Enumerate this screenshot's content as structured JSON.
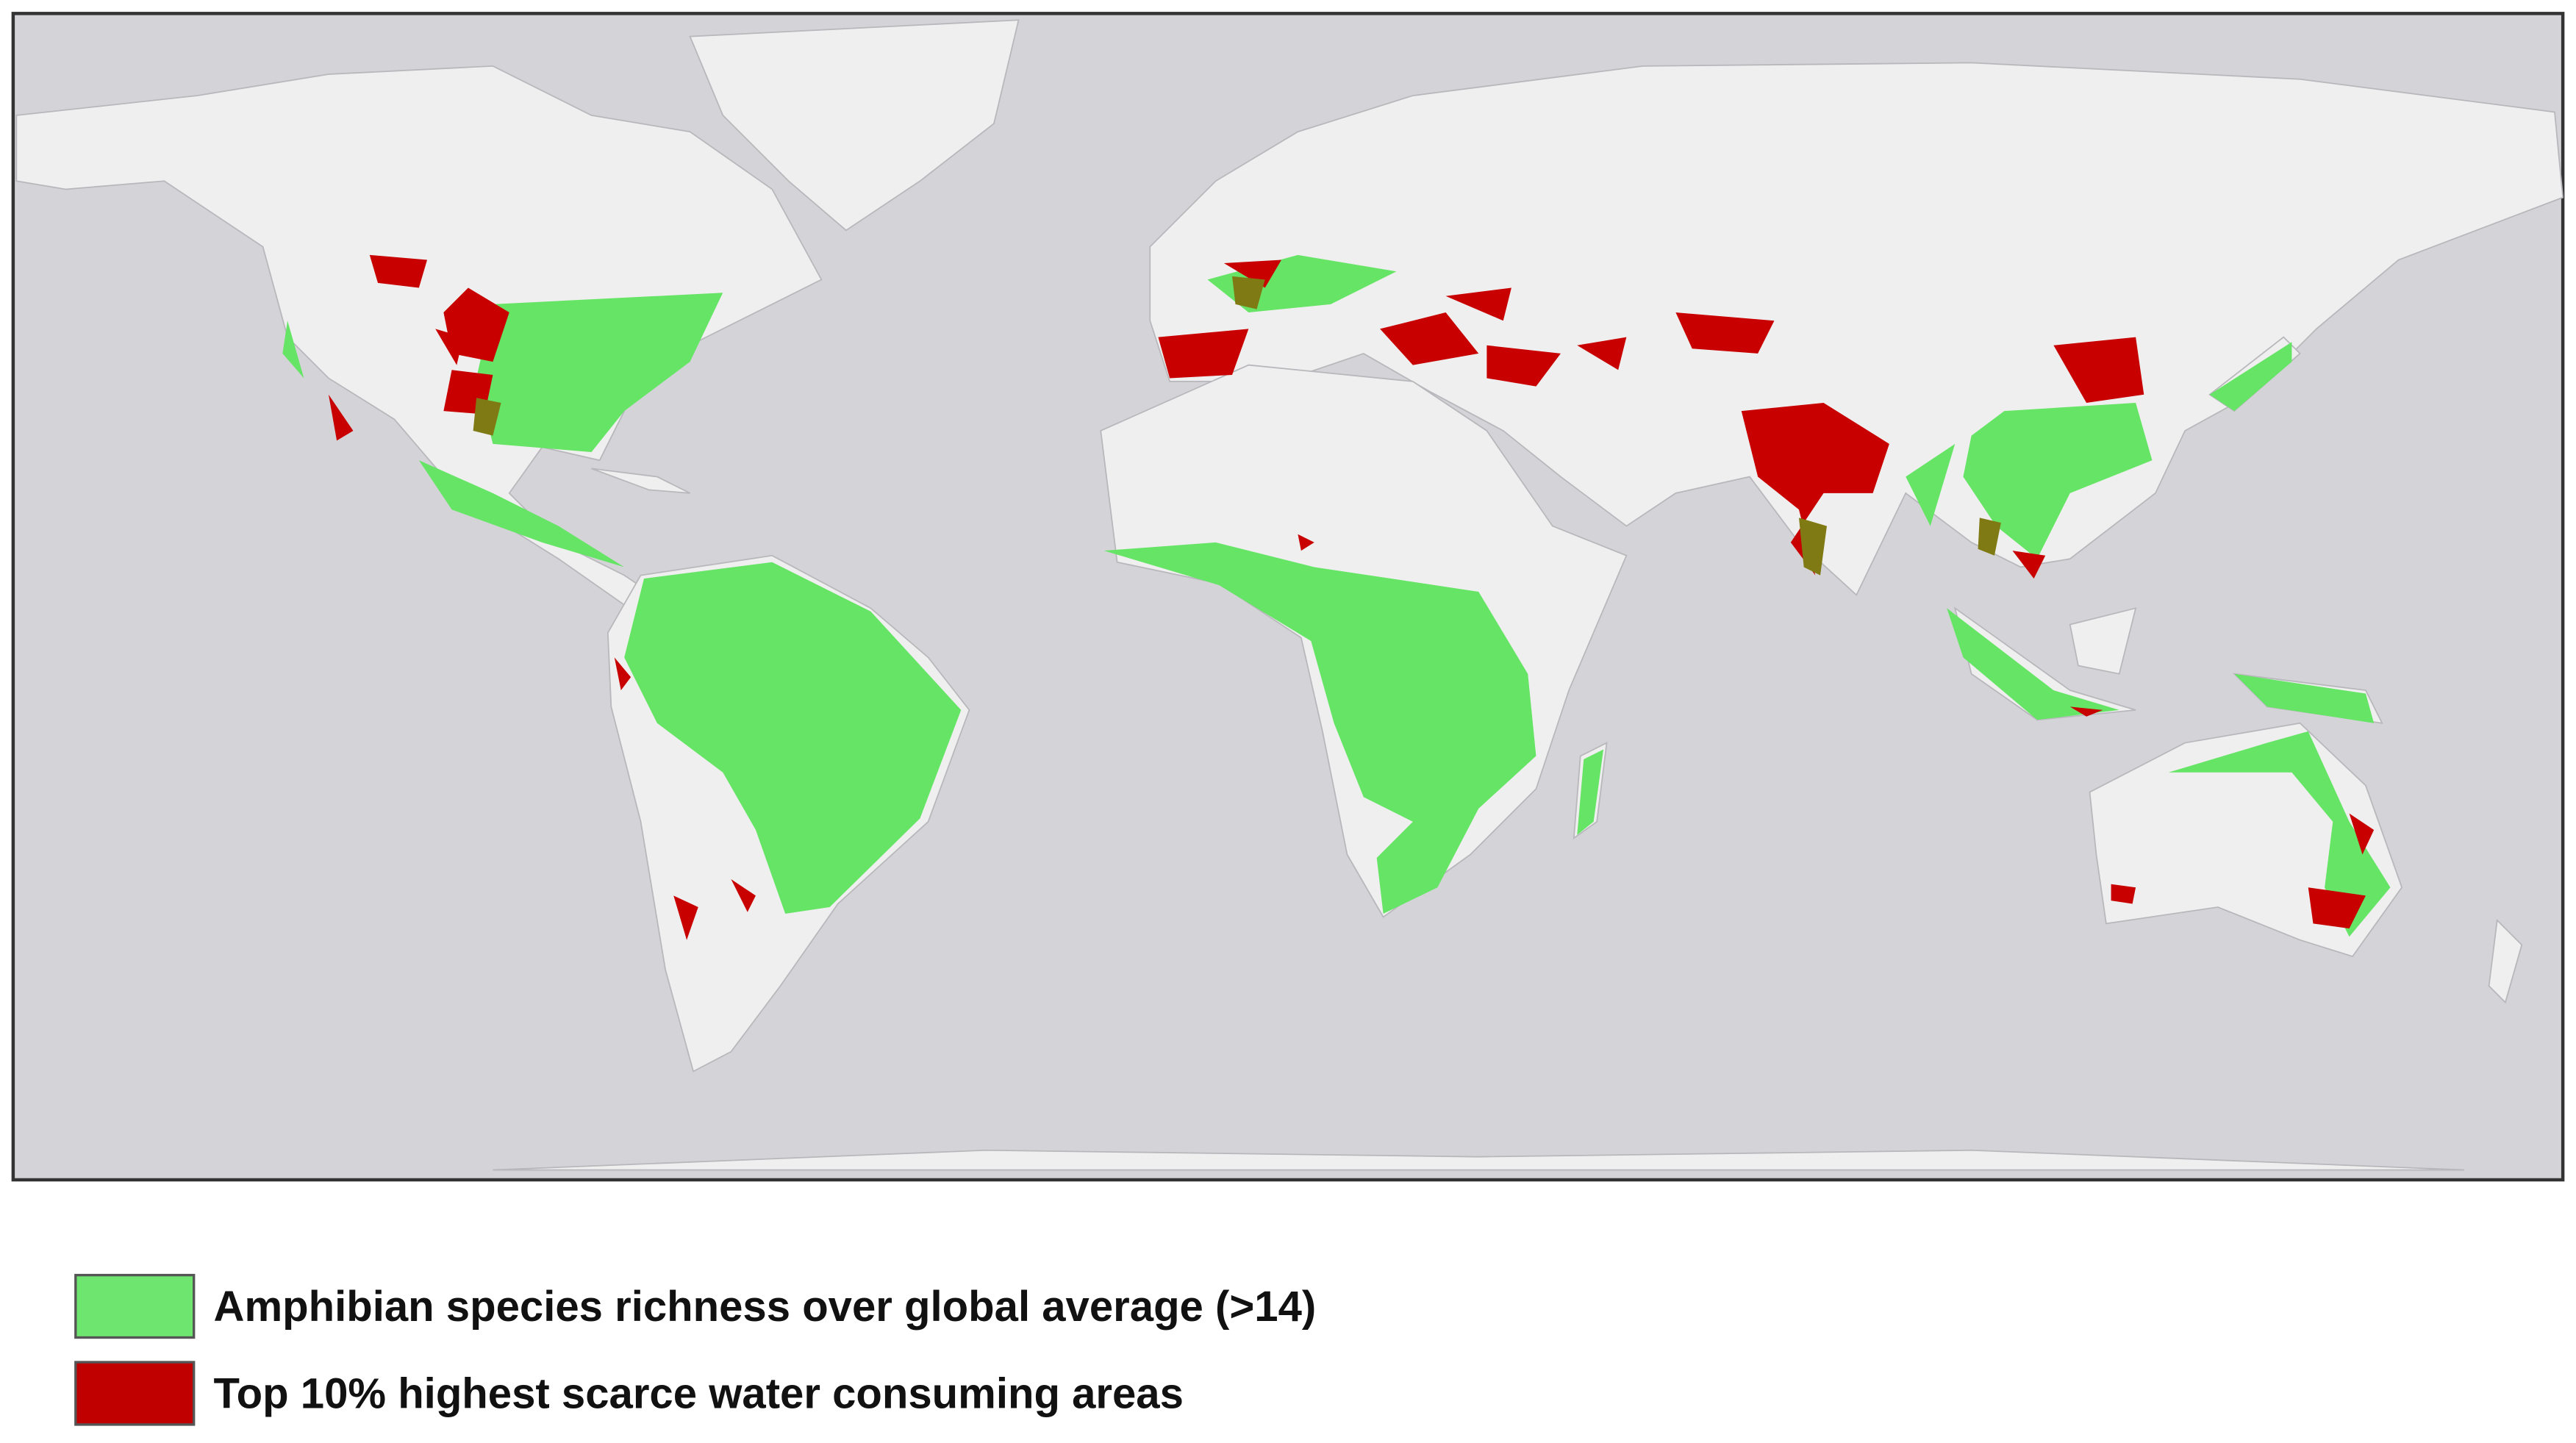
{
  "legend": {
    "items": [
      {
        "label": "Amphibian species richness over global average (>14)"
      },
      {
        "label": "Top 10% highest scarce water consuming areas"
      }
    ]
  }
}
